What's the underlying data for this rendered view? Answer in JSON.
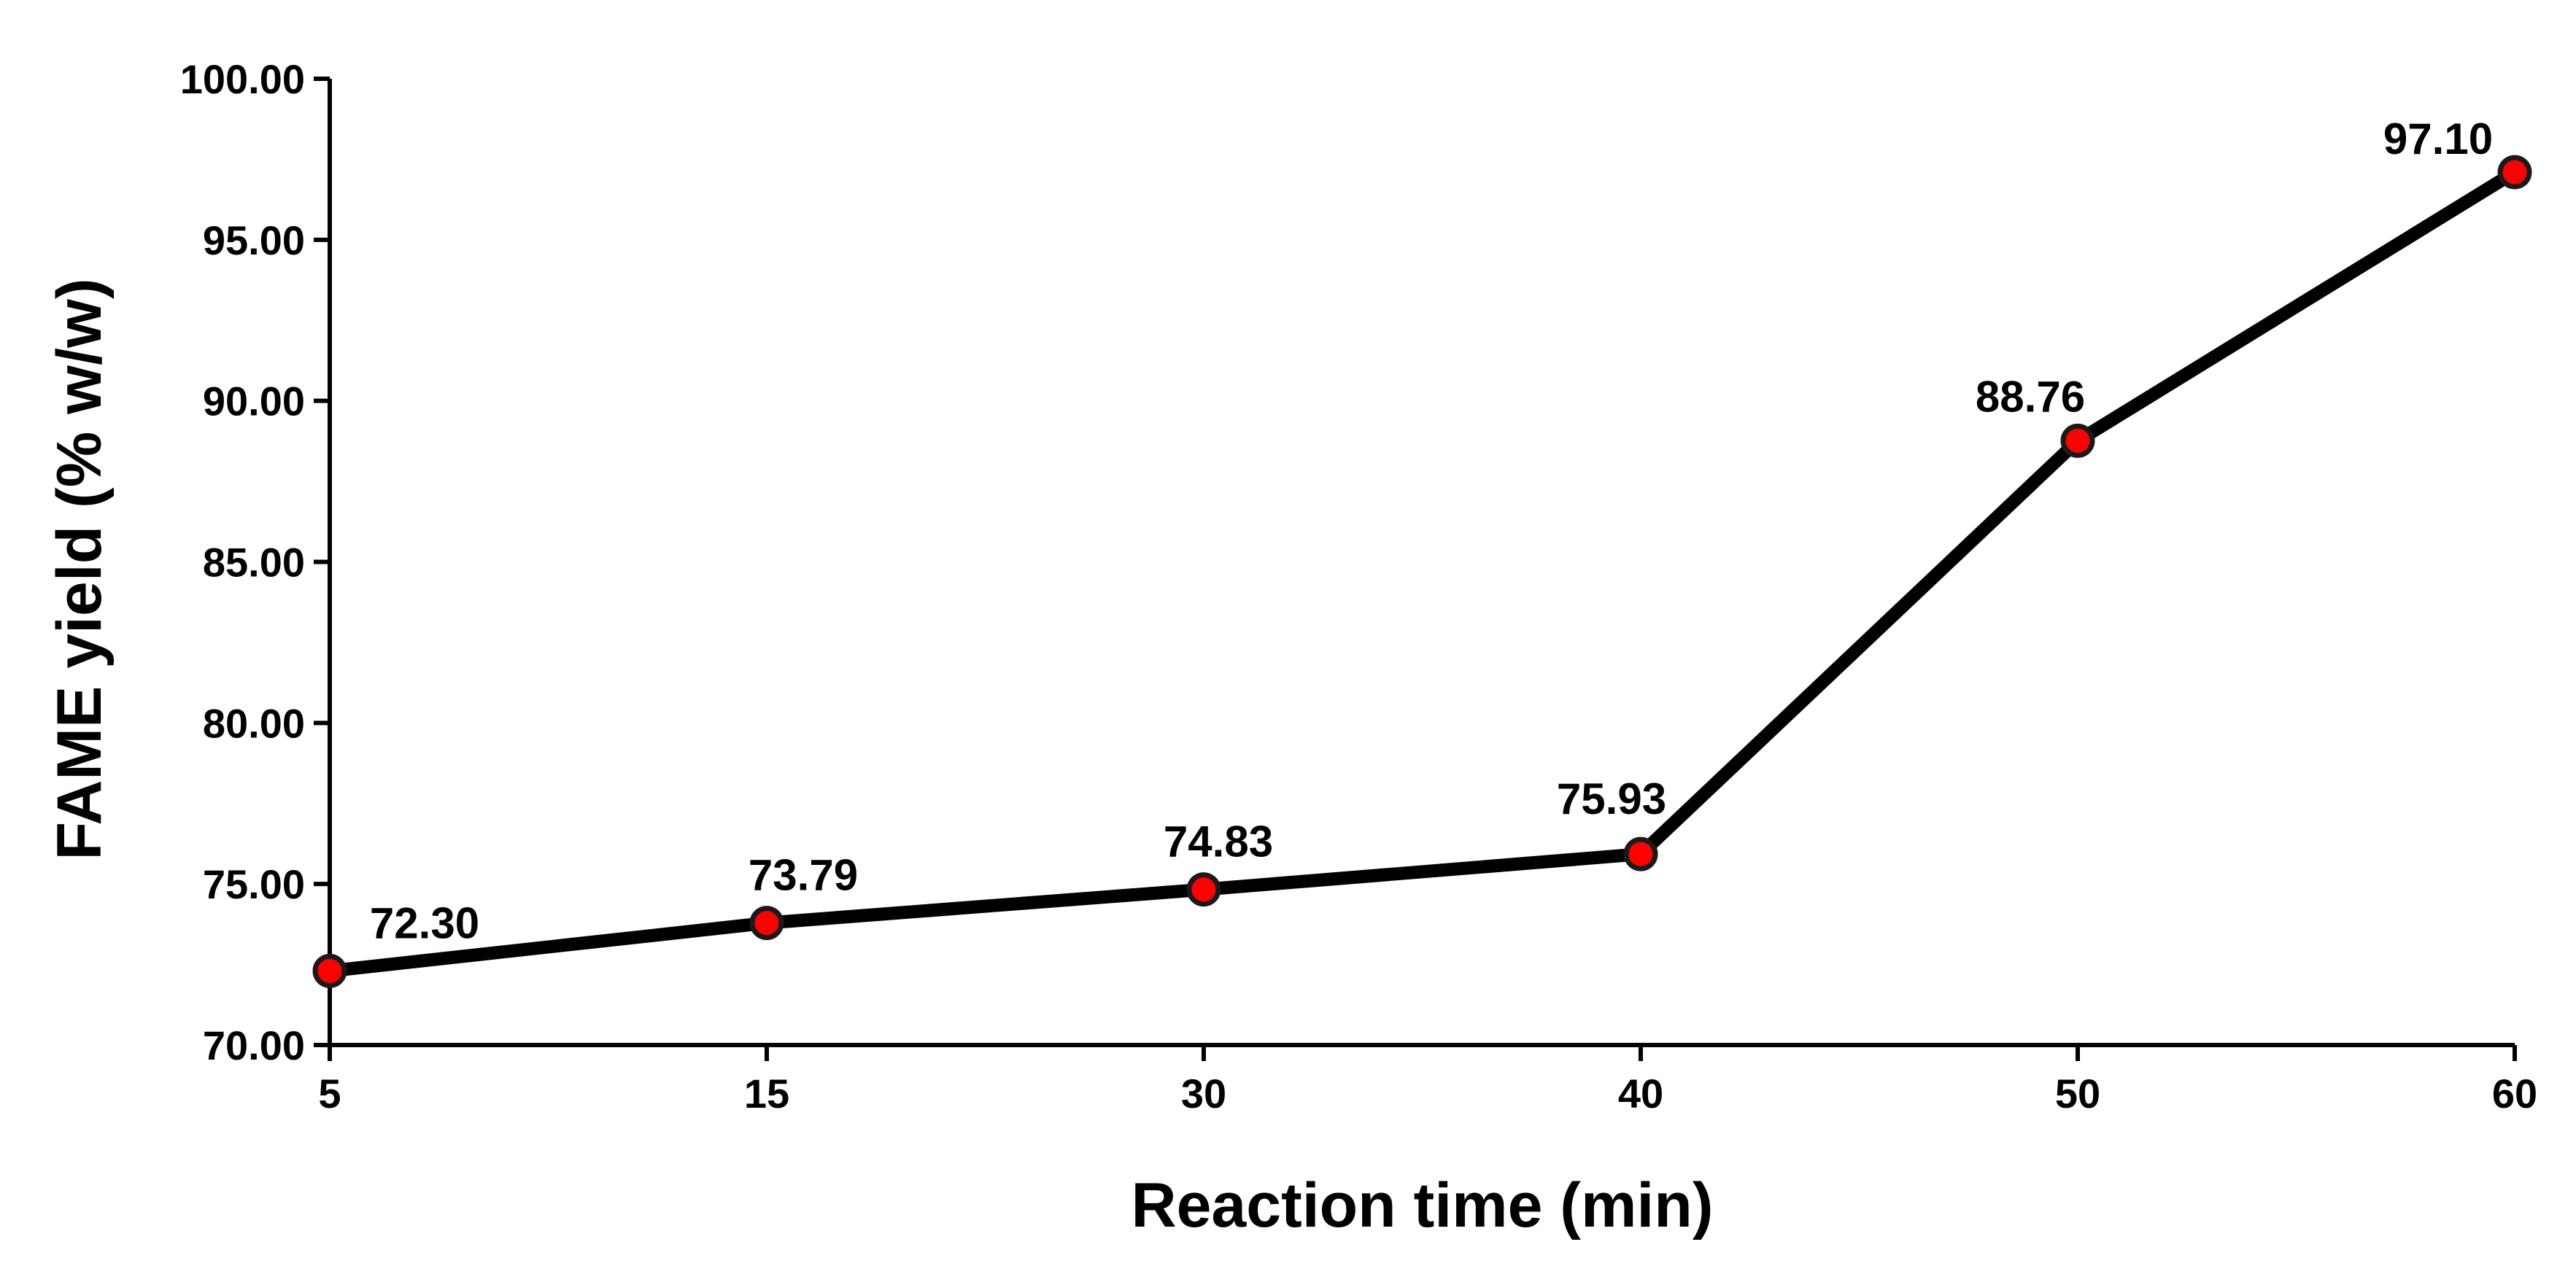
{
  "chart_data": {
    "type": "line",
    "title": "",
    "xlabel": "Reaction time (min)",
    "ylabel": "FAME yield (% w/w)",
    "categories": [
      "5",
      "15",
      "30",
      "40",
      "50",
      "60"
    ],
    "series": [
      {
        "name": "FAME yield",
        "values": [
          72.3,
          73.79,
          74.83,
          75.93,
          88.76,
          97.1
        ],
        "labels": [
          "72.30",
          "73.79",
          "74.83",
          "75.93",
          "88.76",
          "97.10"
        ]
      }
    ],
    "ylim": [
      70,
      100
    ],
    "yticks": [
      70,
      75,
      80,
      85,
      90,
      95,
      100
    ],
    "ytick_labels": [
      "70.00",
      "75.00",
      "80.00",
      "85.00",
      "90.00",
      "95.00",
      "100.00"
    ],
    "grid": false,
    "colors": {
      "line": "#000000",
      "marker_fill": "#ff0000",
      "marker_stroke": "#1a1a1a",
      "axis": "#000000"
    }
  }
}
